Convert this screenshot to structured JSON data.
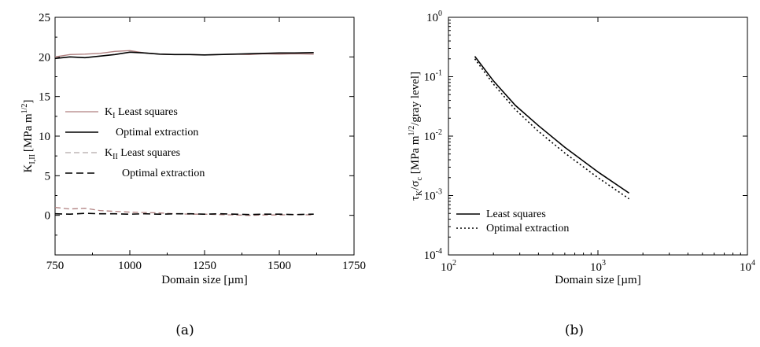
{
  "chart_data": [
    {
      "id": "a",
      "type": "line",
      "caption": "(a)",
      "xlabel": "Domain size [µm]",
      "ylabel": "K",
      "ylabel_sub": "I,II",
      "ylabel_unit": "[MPa m",
      "ylabel_sup": "1/2",
      "ylabel_end": "]",
      "xlim": [
        750,
        1750
      ],
      "ylim": [
        -5,
        25
      ],
      "xticks": [
        "750",
        "1000",
        "1250",
        "1500",
        "1750"
      ],
      "yticks": [
        "0",
        "5",
        "10",
        "15",
        "20",
        "25"
      ],
      "grid": false,
      "legend_position": "center-left",
      "legend": [
        {
          "main": "K",
          "sub": "I",
          "text": " Least squares"
        },
        {
          "main": "",
          "sub": "",
          "text": "Optimal extraction"
        },
        {
          "main": "K",
          "sub": "II",
          "text": " Least squares"
        },
        {
          "main": "",
          "sub": "",
          "text": "Optimal extraction"
        }
      ],
      "series": [
        {
          "color": "#b08080",
          "dash": "",
          "x": [
            750,
            800,
            850,
            900,
            950,
            1000,
            1050,
            1100,
            1150,
            1200,
            1250,
            1300,
            1350,
            1400,
            1450,
            1500,
            1550,
            1615
          ],
          "y": [
            20.0,
            20.3,
            20.35,
            20.45,
            20.7,
            20.8,
            20.5,
            20.35,
            20.3,
            20.3,
            20.25,
            20.3,
            20.35,
            20.3,
            20.4,
            20.35,
            20.4,
            20.35
          ]
        },
        {
          "color": "#000000",
          "dash": "",
          "x": [
            750,
            800,
            850,
            900,
            950,
            1000,
            1050,
            1100,
            1150,
            1200,
            1250,
            1300,
            1350,
            1400,
            1450,
            1500,
            1550,
            1615
          ],
          "y": [
            19.8,
            20.0,
            19.9,
            20.1,
            20.3,
            20.6,
            20.5,
            20.35,
            20.3,
            20.3,
            20.25,
            20.3,
            20.35,
            20.4,
            20.45,
            20.5,
            20.5,
            20.55
          ]
        },
        {
          "color": "#b08080",
          "dash": "7,4",
          "x": [
            750,
            800,
            850,
            900,
            950,
            1000,
            1050,
            1100,
            1150,
            1200,
            1250,
            1300,
            1350,
            1400,
            1450,
            1500,
            1550,
            1615
          ],
          "y": [
            1.0,
            0.8,
            0.9,
            0.6,
            0.5,
            0.4,
            0.35,
            0.3,
            0.2,
            0.15,
            0.15,
            0.1,
            0.05,
            0.0,
            0.05,
            0.05,
            0.1,
            0.05
          ]
        },
        {
          "color": "#000000",
          "dash": "9,5",
          "x": [
            750,
            800,
            850,
            900,
            950,
            1000,
            1050,
            1100,
            1150,
            1200,
            1250,
            1300,
            1350,
            1400,
            1450,
            1500,
            1550,
            1615
          ],
          "y": [
            0.2,
            0.15,
            0.25,
            0.2,
            0.2,
            0.15,
            0.2,
            0.15,
            0.2,
            0.2,
            0.15,
            0.2,
            0.15,
            0.1,
            0.15,
            0.15,
            0.1,
            0.15
          ]
        }
      ]
    },
    {
      "id": "b",
      "type": "line",
      "scale": "log-log",
      "caption": "(b)",
      "xlabel": "Domain size [µm]",
      "ylabel_main": "τ",
      "ylabel_sub1": "K",
      "ylabel_mid": "/σ",
      "ylabel_sub2": "c",
      "ylabel_unit": " [MPa m",
      "ylabel_sup": "1/2",
      "ylabel_end": "/gray level]",
      "xlim": [
        100,
        10000
      ],
      "ylim": [
        0.0001,
        1
      ],
      "xticks": [
        {
          "base": "10",
          "exp": "2"
        },
        {
          "base": "10",
          "exp": "3"
        },
        {
          "base": "10",
          "exp": "4"
        }
      ],
      "yticks": [
        {
          "base": "10",
          "exp": "-4"
        },
        {
          "base": "10",
          "exp": "-3"
        },
        {
          "base": "10",
          "exp": "-2"
        },
        {
          "base": "10",
          "exp": "-1"
        },
        {
          "base": "10",
          "exp": "0"
        }
      ],
      "grid": false,
      "legend_position": "bottom-left",
      "legend": [
        "Least squares",
        "Optimal extraction"
      ],
      "series": [
        {
          "color": "#000000",
          "dash": "",
          "x": [
            150,
            200,
            280,
            400,
            600,
            1000,
            1615
          ],
          "y": [
            0.22,
            0.085,
            0.033,
            0.015,
            0.0065,
            0.0025,
            0.0011
          ]
        },
        {
          "color": "#000000",
          "dash": "2,3",
          "x": [
            150,
            200,
            280,
            400,
            600,
            1000,
            1615
          ],
          "y": [
            0.2,
            0.075,
            0.028,
            0.012,
            0.0052,
            0.002,
            0.00088
          ]
        }
      ]
    }
  ]
}
